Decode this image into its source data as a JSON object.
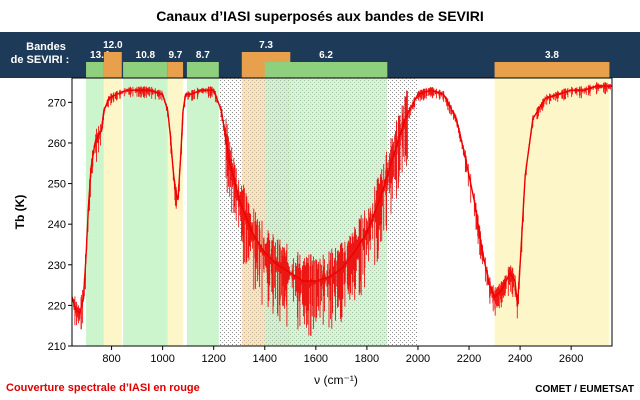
{
  "header": {
    "band_label_line1": "Bandes",
    "band_label_line2": "de SEVIRI :"
  },
  "footer": {
    "left": "Couverture spectrale d’IASI en rouge",
    "right": "COMET / EUMETSAT"
  },
  "colors": {
    "header_bg": "#1d3a58",
    "band_green": "#8fd07f",
    "band_orange": "#e8a04c",
    "fill_green": "#cdf5cd",
    "fill_yellow": "#fdf6c8",
    "fill_orange": "#fde3b8",
    "spectrum": "#ee0000"
  },
  "chart_data": {
    "type": "line",
    "title": "Canaux d’IASI superposés aux bandes de SEVIRI",
    "xlabel": "ν (cm⁻¹)",
    "ylabel": "Tb (K)",
    "xlim": [
      645,
      2760
    ],
    "ylim": [
      210,
      276
    ],
    "x_ticks": [
      800,
      1000,
      1200,
      1400,
      1600,
      1800,
      2000,
      2200,
      2400,
      2600
    ],
    "y_ticks": [
      210,
      220,
      230,
      240,
      250,
      260,
      270
    ],
    "seviri_bands": [
      {
        "label": "13.4",
        "start": 700,
        "end": 770,
        "color": "green",
        "bar_row": "low"
      },
      {
        "label": "12.0",
        "start": 770,
        "end": 840,
        "color": "orange",
        "bar_row": "high"
      },
      {
        "label": "10.8",
        "start": 845,
        "end": 1020,
        "color": "green",
        "bar_row": "low"
      },
      {
        "label": "9.7",
        "start": 1020,
        "end": 1080,
        "color": "orange",
        "bar_row": "low"
      },
      {
        "label": "8.7",
        "start": 1095,
        "end": 1220,
        "color": "green",
        "bar_row": "low"
      },
      {
        "label": "7.3",
        "start": 1310,
        "end": 1500,
        "color": "orange",
        "bar_row": "high"
      },
      {
        "label": "6.2",
        "start": 1400,
        "end": 1880,
        "color": "green",
        "bar_row": "low"
      },
      {
        "label": "3.8",
        "start": 2300,
        "end": 2750,
        "color": "orange",
        "bar_row": "low"
      }
    ],
    "series": [
      {
        "color": "#ee0000",
        "x": [
          645,
          660,
          675,
          690,
          700,
          710,
          720,
          735,
          750,
          760,
          770,
          790,
          820,
          860,
          900,
          950,
          1000,
          1020,
          1030,
          1040,
          1050,
          1060,
          1070,
          1080,
          1090,
          1110,
          1150,
          1200,
          1230,
          1260,
          1300,
          1350,
          1400,
          1450,
          1500,
          1550,
          1600,
          1650,
          1700,
          1750,
          1800,
          1850,
          1900,
          1950,
          2000,
          2050,
          2100,
          2150,
          2180,
          2220,
          2250,
          2280,
          2300,
          2330,
          2360,
          2380,
          2390,
          2400,
          2420,
          2450,
          2500,
          2550,
          2600,
          2650,
          2700,
          2760
        ],
        "values": [
          222,
          219,
          218,
          222,
          232,
          245,
          254,
          260,
          262,
          263,
          268,
          271,
          272,
          273,
          273,
          273,
          272,
          268,
          262,
          254,
          248,
          246,
          256,
          268,
          272,
          272,
          273,
          273,
          268,
          256,
          246,
          238,
          233,
          230,
          228,
          226,
          226,
          227,
          229,
          233,
          238,
          246,
          256,
          266,
          272,
          273,
          272,
          266,
          258,
          246,
          234,
          225,
          222,
          224,
          228,
          226,
          220,
          230,
          252,
          266,
          271,
          272,
          273,
          273,
          274,
          274
        ]
      }
    ]
  }
}
